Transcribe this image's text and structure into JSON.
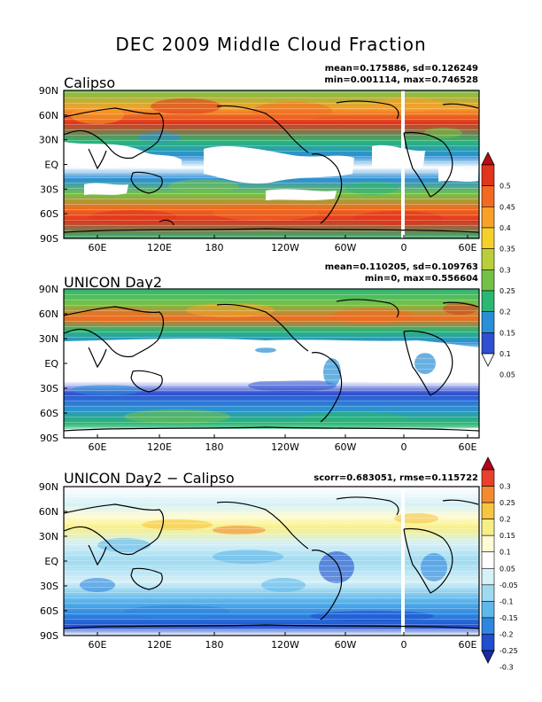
{
  "figure_title": "DEC 2009 Middle Cloud Fraction",
  "panels": [
    {
      "title": "Calipso",
      "stats_line1": "mean=0.175886, sd=0.126249",
      "stats_line2": "min=0.001114, max=0.746528"
    },
    {
      "title": "UNICON Day2",
      "stats_line1": "mean=0.110205, sd=0.109763",
      "stats_line2": "min=0, max=0.556604"
    },
    {
      "title": "UNICON Day2 − Calipso",
      "stats_line1": "scorr=0.683051, rmse=0.115722",
      "stats_line2": ""
    }
  ],
  "lat_labels": [
    "90N",
    "60N",
    "30N",
    "EQ",
    "30S",
    "60S",
    "90S"
  ],
  "lon_labels": [
    "60E",
    "120E",
    "180",
    "120W",
    "60W",
    "0",
    "60E"
  ],
  "colorbar_top": {
    "labels": [
      "0.5",
      "0.45",
      "0.4",
      "0.35",
      "0.3",
      "0.25",
      "0.2",
      "0.15",
      "0.1",
      "0.05"
    ],
    "colors": [
      "#b50f0f",
      "#e0341c",
      "#f26a1f",
      "#f7a128",
      "#f5d02a",
      "#b9cf3a",
      "#73c247",
      "#2ab673",
      "#2a8fd6",
      "#2f4fd1",
      "#ffffff"
    ]
  },
  "colorbar_diff": {
    "labels": [
      "0.3",
      "0.25",
      "0.2",
      "0.15",
      "0.1",
      "0.05",
      "-0.05",
      "-0.1",
      "-0.15",
      "-0.2",
      "-0.25",
      "-0.3"
    ],
    "colors": [
      "#b3001e",
      "#e8402a",
      "#f58a2e",
      "#f7c640",
      "#f7ef86",
      "#fffbd4",
      "#ffffff",
      "#d6f1f7",
      "#9fdaf0",
      "#5fb8ea",
      "#2e86e0",
      "#1f4fd0",
      "#1b2aa8"
    ]
  },
  "legend_colors": {
    "calipso_palette": [
      "#ffffff",
      "#2f4fd1",
      "#2a8fd6",
      "#2ab673",
      "#73c247",
      "#b9cf3a",
      "#f5d02a",
      "#f7a128",
      "#f26a1f",
      "#e0341c",
      "#b50f0f"
    ],
    "model_palette": [
      "#ffffff",
      "#2f4fd1",
      "#2a8fd6",
      "#2ab673",
      "#73c247",
      "#b9cf3a",
      "#f5d02a",
      "#f7a128",
      "#f26a1f"
    ],
    "diff_palette": [
      "#1b2aa8",
      "#1f4fd0",
      "#2e86e0",
      "#5fb8ea",
      "#9fdaf0",
      "#d6f1f7",
      "#ffffff",
      "#fffbd4",
      "#f7ef86",
      "#f7c640",
      "#f58a2e"
    ]
  }
}
